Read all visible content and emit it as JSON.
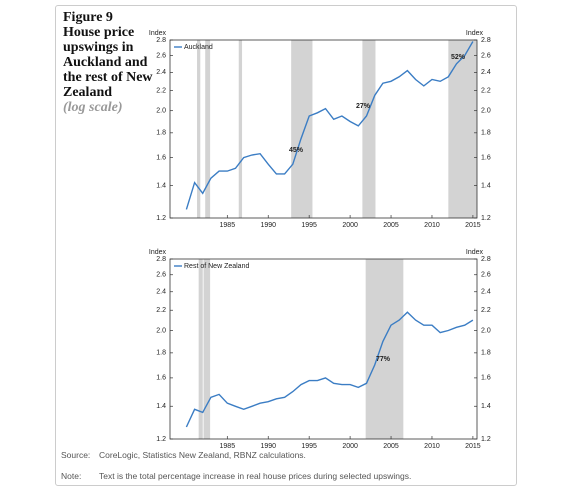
{
  "title": "Figure 9",
  "subtitle": "House price upswings in Auckland and the rest of New Zealand",
  "scale_note": "(log scale)",
  "chart_data": [
    {
      "type": "line",
      "log_scale": true,
      "ylabel": "Index",
      "y2label": "Index",
      "x": [
        1980,
        1981,
        1982,
        1983,
        1984,
        1985,
        1986,
        1987,
        1988,
        1989,
        1990,
        1991,
        1992,
        1993,
        1994,
        1995,
        1996,
        1997,
        1998,
        1999,
        2000,
        2001,
        2002,
        2003,
        2004,
        2005,
        2006,
        2007,
        2008,
        2009,
        2010,
        2011,
        2012,
        2013,
        2014,
        2015
      ],
      "series": [
        {
          "name": "Auckland",
          "color": "#3b7dc4",
          "values": [
            1.25,
            1.42,
            1.35,
            1.45,
            1.5,
            1.5,
            1.52,
            1.6,
            1.62,
            1.63,
            1.55,
            1.48,
            1.48,
            1.55,
            1.75,
            1.95,
            1.98,
            2.02,
            1.92,
            1.95,
            1.9,
            1.86,
            1.95,
            2.15,
            2.28,
            2.3,
            2.35,
            2.42,
            2.32,
            2.25,
            2.32,
            2.3,
            2.35,
            2.5,
            2.6,
            2.78
          ]
        }
      ],
      "xlim": [
        1978,
        2015.5
      ],
      "xticks": [
        1985,
        1990,
        1995,
        2000,
        2005,
        2010,
        2015
      ],
      "ylim": [
        1.2,
        2.8
      ],
      "yticks": [
        1.2,
        1.4,
        1.6,
        1.8,
        {
          "value": 2,
          "label": "2.0"
        },
        2.2,
        2.4,
        2.6,
        2.8
      ],
      "y2lim": [
        1.2,
        2.8
      ],
      "y2ticks": [
        1.2,
        1.4,
        1.6,
        1.8,
        {
          "value": 2,
          "label": "2.0"
        },
        2.2,
        2.4,
        2.6,
        2.8
      ],
      "shaded_periods": [
        [
          1981.3,
          1981.7
        ],
        [
          1982.3,
          1982.9
        ],
        [
          1986.4,
          1986.8
        ],
        [
          1992.8,
          1995.4
        ],
        [
          2001.5,
          2003.1
        ],
        [
          2012.0,
          2015.5
        ]
      ],
      "shade_color": "#d3d3d3",
      "annotations": [
        "45%",
        "27%",
        "52%"
      ]
    },
    {
      "type": "line",
      "log_scale": true,
      "ylabel": "Index",
      "y2label": "Index",
      "x": [
        1980,
        1981,
        1982,
        1983,
        1984,
        1985,
        1986,
        1987,
        1988,
        1989,
        1990,
        1991,
        1992,
        1993,
        1994,
        1995,
        1996,
        1997,
        1998,
        1999,
        2000,
        2001,
        2002,
        2003,
        2004,
        2005,
        2006,
        2007,
        2008,
        2009,
        2010,
        2011,
        2012,
        2013,
        2014,
        2015
      ],
      "series": [
        {
          "name": "Rest of New Zealand",
          "color": "#3b7dc4",
          "values": [
            1.27,
            1.38,
            1.36,
            1.46,
            1.48,
            1.42,
            1.4,
            1.38,
            1.4,
            1.42,
            1.43,
            1.45,
            1.46,
            1.5,
            1.55,
            1.58,
            1.58,
            1.6,
            1.56,
            1.55,
            1.55,
            1.53,
            1.56,
            1.7,
            1.9,
            2.05,
            2.1,
            2.18,
            2.1,
            2.05,
            2.05,
            1.98,
            2.0,
            2.03,
            2.05,
            2.1
          ]
        }
      ],
      "xlim": [
        1978,
        2015.5
      ],
      "xticks": [
        1985,
        1990,
        1995,
        2000,
        2005,
        2010,
        2015
      ],
      "ylim": [
        1.2,
        2.8
      ],
      "yticks": [
        1.2,
        1.4,
        1.6,
        1.8,
        {
          "value": 2,
          "label": "2.0"
        },
        2.2,
        2.4,
        2.6,
        2.8
      ],
      "y2lim": [
        1.2,
        2.8
      ],
      "y2ticks": [
        1.2,
        1.4,
        1.6,
        1.8,
        {
          "value": 2,
          "label": "2.0"
        },
        2.2,
        2.4,
        2.6,
        2.8
      ],
      "shaded_periods": [
        [
          1981.5,
          1982.0
        ],
        [
          1982.1,
          1982.9
        ],
        [
          2001.9,
          2006.5
        ]
      ],
      "shade_color": "#d3d3d3",
      "annotations": [
        "77%"
      ]
    }
  ],
  "source_label": "Source:",
  "source": "CoreLogic, Statistics New Zealand, RBNZ calculations.",
  "note_label": "Note:",
  "note": "Text is the total percentage increase in real house prices during selected upswings."
}
